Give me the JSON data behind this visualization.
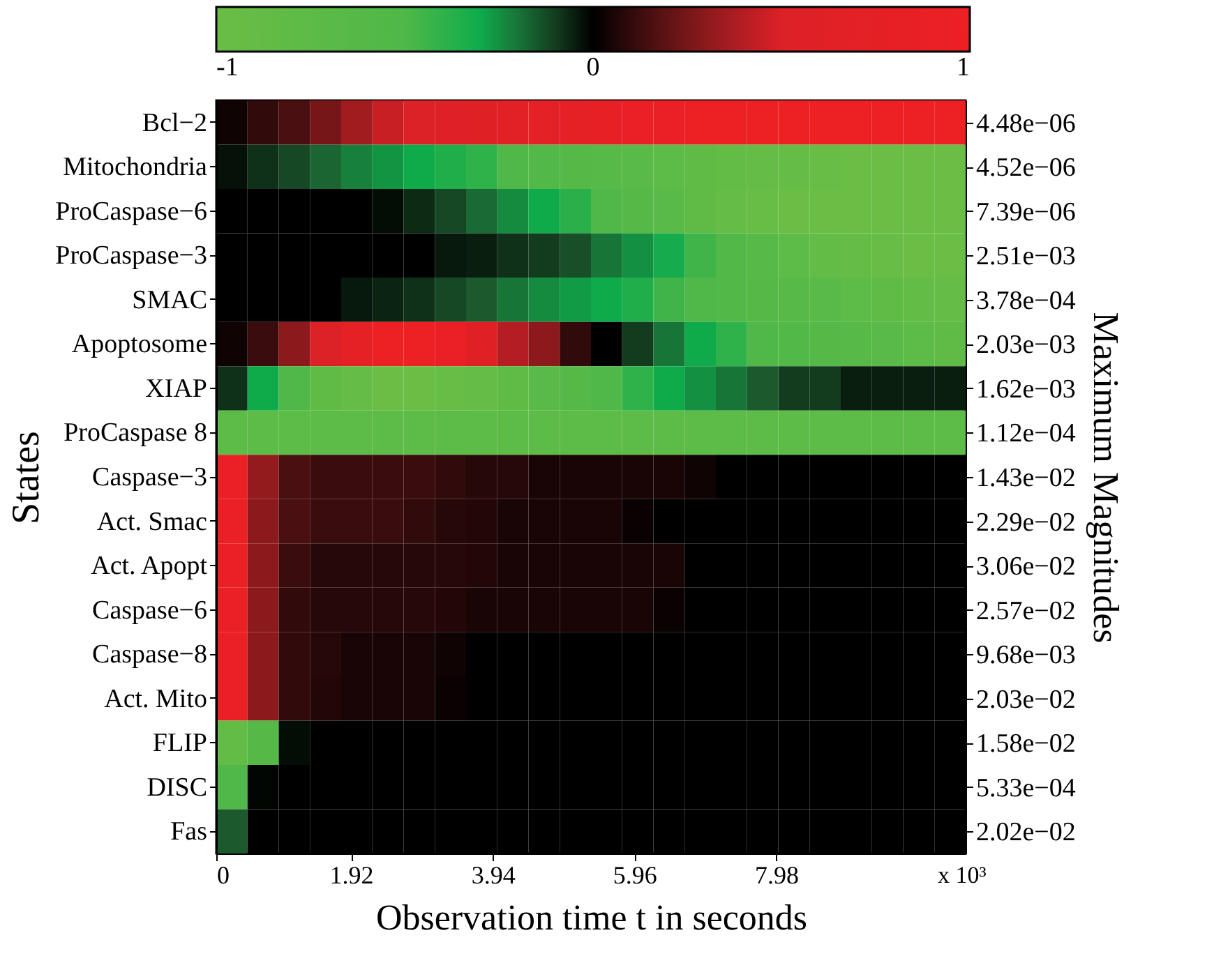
{
  "chart_data": {
    "type": "heatmap",
    "xlabel": "Observation time t in seconds",
    "ylabel": "States",
    "y2label": "Maximum Magnitudes",
    "annotations": [
      "x 10³"
    ],
    "x": [
      0.2225,
      0.6675,
      1.1125,
      1.5575,
      2.0025,
      2.4475,
      2.8925,
      3.3375,
      3.7825,
      4.2275,
      4.6725,
      5.1175,
      5.5625,
      6.0075,
      6.4525,
      6.8975,
      7.3425,
      7.7875,
      8.2325,
      8.6775,
      9.1225,
      9.5675,
      10.0125,
      10.4575
    ],
    "xlim": [
      0,
      10.68
    ],
    "xticks": [
      0,
      1.92,
      3.94,
      5.96,
      7.98
    ],
    "y_categories": [
      "Bcl−2",
      "Mitochondria",
      "ProCaspase−6",
      "ProCaspase−3",
      "SMAC",
      "Apoptosome",
      "XIAP",
      "ProCaspase 8",
      "Caspase−3",
      "Act. Smac",
      "Act. Apopt",
      "Caspase−6",
      "Caspase−8",
      "Act. Mito",
      "FLIP",
      "DISC",
      "Fas"
    ],
    "y2_categories": [
      "4.48e−06",
      "4.52e−06",
      "7.39e−06",
      "2.51e−03",
      "3.78e−04",
      "2.03e−03",
      "1.62e−03",
      "1.12e−04",
      "1.43e−02",
      "2.29e−02",
      "3.06e−02",
      "2.57e−02",
      "9.68e−03",
      "2.03e−02",
      "1.58e−02",
      "5.33e−04",
      "2.02e−02"
    ],
    "cells": [
      [
        0.03,
        0.1,
        0.15,
        0.25,
        0.35,
        0.45,
        0.5,
        0.55,
        0.6,
        0.65,
        0.7,
        0.75,
        0.8,
        0.9,
        0.95,
        1,
        1,
        1,
        1,
        1,
        1,
        1,
        1,
        1
      ],
      [
        -0.03,
        -0.08,
        -0.12,
        -0.17,
        -0.22,
        -0.26,
        -0.3,
        -0.35,
        -0.4,
        -0.5,
        -0.55,
        -0.6,
        -0.65,
        -0.7,
        -0.75,
        -0.8,
        -0.85,
        -0.9,
        -0.9,
        -0.95,
        -1,
        -1,
        -1,
        -1
      ],
      [
        0,
        0,
        0,
        0,
        0,
        -0.02,
        -0.07,
        -0.12,
        -0.18,
        -0.24,
        -0.3,
        -0.38,
        -0.5,
        -0.6,
        -0.7,
        -0.8,
        -0.9,
        -0.95,
        -1,
        -1,
        -1,
        -1,
        -1,
        -1
      ],
      [
        0,
        0,
        0,
        0,
        0,
        0,
        0,
        -0.04,
        -0.05,
        -0.08,
        -0.1,
        -0.13,
        -0.2,
        -0.25,
        -0.32,
        -0.45,
        -0.55,
        -0.65,
        -0.75,
        -0.85,
        -0.9,
        -0.95,
        -1,
        -1
      ],
      [
        0,
        0,
        0,
        0,
        -0.04,
        -0.06,
        -0.08,
        -0.12,
        -0.15,
        -0.2,
        -0.24,
        -0.27,
        -0.3,
        -0.35,
        -0.45,
        -0.5,
        -0.55,
        -0.6,
        -0.65,
        -0.7,
        -0.75,
        -0.8,
        -0.85,
        -0.9
      ],
      [
        0.03,
        0.12,
        0.3,
        0.5,
        0.75,
        1,
        1,
        0.9,
        0.6,
        0.4,
        0.3,
        0.1,
        0,
        -0.1,
        -0.2,
        -0.3,
        -0.4,
        -0.5,
        -0.55,
        -0.6,
        -0.65,
        -0.7,
        -0.75,
        -0.8
      ],
      [
        -0.08,
        -0.3,
        -0.5,
        -0.8,
        -0.9,
        -1,
        -1,
        -0.95,
        -0.9,
        -0.8,
        -0.7,
        -0.6,
        -0.5,
        -0.4,
        -0.3,
        -0.25,
        -0.2,
        -0.15,
        -0.1,
        -0.1,
        -0.05,
        -0.05,
        -0.05,
        -0.05
      ],
      [
        -0.75,
        -0.75,
        -0.75,
        -0.75,
        -0.75,
        -0.75,
        -0.75,
        -0.75,
        -0.75,
        -0.75,
        -0.75,
        -0.75,
        -0.75,
        -0.75,
        -0.75,
        -0.75,
        -0.75,
        -0.75,
        -0.75,
        -0.75,
        -0.75,
        -0.75,
        -0.75,
        -0.75
      ],
      [
        0.9,
        0.32,
        0.15,
        0.12,
        0.12,
        0.12,
        0.12,
        0.1,
        0.08,
        0.08,
        0.05,
        0.05,
        0.05,
        0.05,
        0.05,
        0.03,
        0,
        0,
        0,
        0,
        0,
        0,
        0,
        0
      ],
      [
        0.9,
        0.3,
        0.15,
        0.12,
        0.12,
        0.12,
        0.1,
        0.08,
        0.07,
        0.05,
        0.05,
        0.05,
        0.05,
        0.02,
        0,
        0,
        0,
        0,
        0,
        0,
        0,
        0,
        0,
        0
      ],
      [
        0.9,
        0.3,
        0.12,
        0.08,
        0.08,
        0.08,
        0.08,
        0.08,
        0.07,
        0.05,
        0.05,
        0.05,
        0.05,
        0.05,
        0.05,
        0,
        0,
        0,
        0,
        0,
        0,
        0,
        0,
        0
      ],
      [
        0.9,
        0.3,
        0.1,
        0.08,
        0.08,
        0.08,
        0.08,
        0.07,
        0.05,
        0.05,
        0.05,
        0.05,
        0.05,
        0.05,
        0.02,
        0,
        0,
        0,
        0,
        0,
        0,
        0,
        0,
        0
      ],
      [
        0.9,
        0.3,
        0.1,
        0.08,
        0.05,
        0.05,
        0.05,
        0.03,
        0,
        0,
        0,
        0,
        0,
        0,
        0,
        0,
        0,
        0,
        0,
        0,
        0,
        0,
        0,
        0
      ],
      [
        0.9,
        0.3,
        0.1,
        0.07,
        0.05,
        0.05,
        0.05,
        0.02,
        0,
        0,
        0,
        0,
        0,
        0,
        0,
        0,
        0,
        0,
        0,
        0,
        0,
        0,
        0,
        0
      ],
      [
        -0.85,
        -0.6,
        -0.02,
        0,
        0,
        0,
        0,
        0,
        0,
        0,
        0,
        0,
        0,
        0,
        0,
        0,
        0,
        0,
        0,
        0,
        0,
        0,
        0,
        0
      ],
      [
        -0.5,
        -0.01,
        0,
        0,
        0,
        0,
        0,
        0,
        0,
        0,
        0,
        0,
        0,
        0,
        0,
        0,
        0,
        0,
        0,
        0,
        0,
        0,
        0,
        0
      ],
      [
        -0.15,
        0,
        0,
        0,
        0,
        0,
        0,
        0,
        0,
        0,
        0,
        0,
        0,
        0,
        0,
        0,
        0,
        0,
        0,
        0,
        0,
        0,
        0,
        0
      ]
    ],
    "clim": [
      -1,
      1
    ],
    "cticks": [
      -1,
      0,
      1
    ]
  }
}
